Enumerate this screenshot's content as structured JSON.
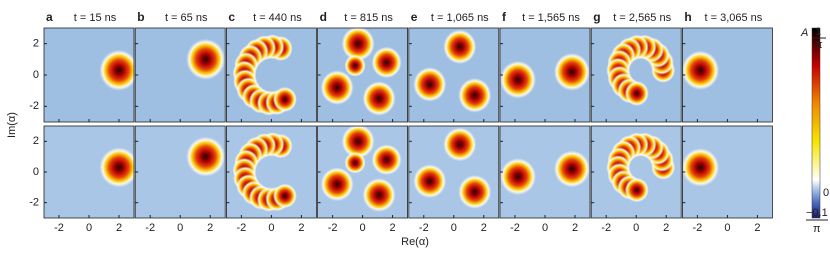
{
  "chart_data": {
    "type": "heatmap",
    "x_label": "Re(α)",
    "y_label": "Im(α)",
    "xlim": [
      -3,
      3
    ],
    "ylim": [
      -3,
      3
    ],
    "xticks": [
      -2,
      0,
      2
    ],
    "yticks": [
      -2,
      0,
      2
    ],
    "panels": [
      {
        "letter": "a",
        "time": "t = 15 ns"
      },
      {
        "letter": "b",
        "time": "t = 65 ns"
      },
      {
        "letter": "c",
        "time": "t = 440 ns"
      },
      {
        "letter": "d",
        "time": "t = 815 ns"
      },
      {
        "letter": "e",
        "time": "t = 1,065 ns"
      },
      {
        "letter": "f",
        "time": "t = 1,565 ns"
      },
      {
        "letter": "g",
        "time": "t = 2,565 ns"
      },
      {
        "letter": "h",
        "time": "t = 3,065 ns"
      }
    ],
    "colorbar": {
      "top_symbol": "A",
      "top_numerator": "1",
      "top_denominator": "π",
      "zero": "0",
      "bottom_numerator": "−0.1",
      "bottom_denominator": "π"
    }
  }
}
